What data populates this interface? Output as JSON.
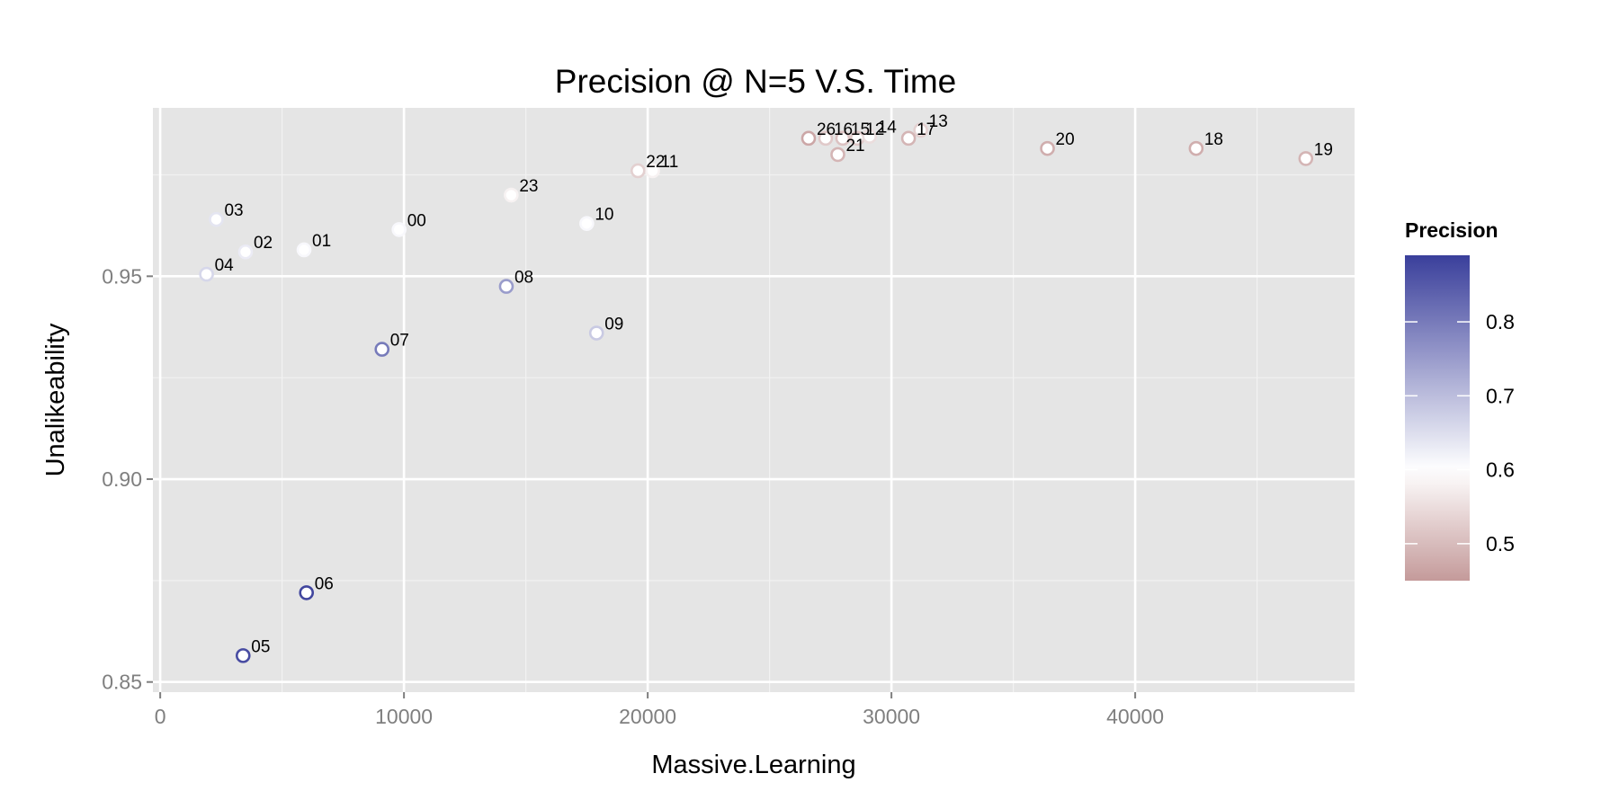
{
  "chart_data": {
    "type": "scatter",
    "title": "Precision @ N=5 V.S. Time",
    "xlabel": "Massive.Learning",
    "ylabel": "Unalikeability",
    "xlim": [
      -300,
      49000
    ],
    "ylim": [
      0.8475,
      0.9915
    ],
    "x_ticks": [
      0,
      10000,
      20000,
      30000,
      40000
    ],
    "x_tick_labels": [
      "0",
      "10000",
      "20000",
      "30000",
      "40000"
    ],
    "y_ticks": [
      0.85,
      0.9,
      0.95
    ],
    "y_tick_labels": [
      "0.85",
      "0.90",
      "0.95"
    ],
    "grid": true,
    "legend": {
      "title": "Precision",
      "placement": "right",
      "range": [
        0.45,
        0.89
      ],
      "ticks": [
        0.5,
        0.6,
        0.7,
        0.8
      ],
      "tick_labels": [
        "0.5",
        "0.6",
        "0.7",
        "0.8"
      ],
      "colors": {
        "low": "#c49a9a",
        "mid": "#ffffff",
        "high": "#3a3f9b"
      },
      "midpoint": 0.6
    },
    "points": [
      {
        "label": "00",
        "x": 9800,
        "y": 0.9615,
        "precision": 0.61
      },
      {
        "label": "01",
        "x": 5900,
        "y": 0.9565,
        "precision": 0.61
      },
      {
        "label": "02",
        "x": 3500,
        "y": 0.956,
        "precision": 0.63
      },
      {
        "label": "03",
        "x": 2300,
        "y": 0.964,
        "precision": 0.64
      },
      {
        "label": "04",
        "x": 1900,
        "y": 0.9505,
        "precision": 0.66
      },
      {
        "label": "05",
        "x": 3400,
        "y": 0.8565,
        "precision": 0.87
      },
      {
        "label": "06",
        "x": 6000,
        "y": 0.872,
        "precision": 0.88
      },
      {
        "label": "07",
        "x": 9100,
        "y": 0.932,
        "precision": 0.8
      },
      {
        "label": "08",
        "x": 14200,
        "y": 0.9475,
        "precision": 0.75
      },
      {
        "label": "09",
        "x": 17900,
        "y": 0.936,
        "precision": 0.68
      },
      {
        "label": "10",
        "x": 17500,
        "y": 0.963,
        "precision": 0.61
      },
      {
        "label": "11",
        "x": 20200,
        "y": 0.976,
        "precision": 0.58
      },
      {
        "label": "12",
        "x": 28600,
        "y": 0.984,
        "precision": 0.52
      },
      {
        "label": "13",
        "x": 31200,
        "y": 0.986,
        "precision": 0.53
      },
      {
        "label": "14",
        "x": 29100,
        "y": 0.9845,
        "precision": 0.55
      },
      {
        "label": "15",
        "x": 28000,
        "y": 0.984,
        "precision": 0.51
      },
      {
        "label": "16",
        "x": 27300,
        "y": 0.984,
        "precision": 0.52
      },
      {
        "label": "17",
        "x": 30700,
        "y": 0.984,
        "precision": 0.49
      },
      {
        "label": "18",
        "x": 42500,
        "y": 0.9815,
        "precision": 0.48
      },
      {
        "label": "19",
        "x": 47000,
        "y": 0.979,
        "precision": 0.49
      },
      {
        "label": "20",
        "x": 36400,
        "y": 0.9815,
        "precision": 0.48
      },
      {
        "label": "21",
        "x": 27800,
        "y": 0.98,
        "precision": 0.49
      },
      {
        "label": "22",
        "x": 19600,
        "y": 0.976,
        "precision": 0.53
      },
      {
        "label": "23",
        "x": 14400,
        "y": 0.97,
        "precision": 0.58
      },
      {
        "label": "26",
        "x": 26600,
        "y": 0.984,
        "precision": 0.47
      }
    ]
  }
}
